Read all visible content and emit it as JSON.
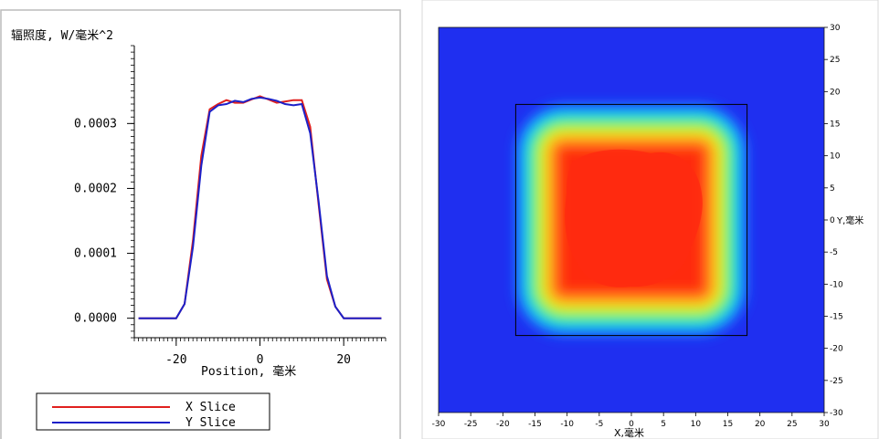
{
  "chart_data": [
    {
      "type": "line",
      "ylabel": "辐照度, W/毫米^2",
      "xlabel": "Position, 毫米",
      "xlim": [
        -30,
        30
      ],
      "ylim": [
        -3e-05,
        0.00042
      ],
      "x_tick_labels": [
        "-20",
        "0",
        "20"
      ],
      "x_ticks": [
        -20,
        0,
        20
      ],
      "y_tick_labels": [
        "0.0000",
        "0.0001",
        "0.0002",
        "0.0003"
      ],
      "y_ticks": [
        0,
        0.0001,
        0.0002,
        0.0003
      ],
      "legend": "bottom",
      "grid": false,
      "series": [
        {
          "name": "X Slice",
          "color": "#e0201e",
          "x": [
            -29,
            -20,
            -18,
            -16,
            -14,
            -12,
            -10,
            -8,
            -6,
            -4,
            -2,
            0,
            2,
            4,
            6,
            8,
            10,
            12,
            14,
            16,
            18,
            20,
            29
          ],
          "y": [
            0,
            0,
            2.2e-05,
            0.00012,
            0.00025,
            0.000322,
            0.00033,
            0.000336,
            0.000332,
            0.000332,
            0.000337,
            0.000342,
            0.000337,
            0.000332,
            0.000334,
            0.000336,
            0.000336,
            0.000295,
            0.000175,
            6e-05,
            1.8e-05,
            0,
            0
          ]
        },
        {
          "name": "Y Slice",
          "color": "#1c20c8",
          "x": [
            -29,
            -20,
            -18,
            -16,
            -14,
            -12,
            -10,
            -8,
            -6,
            -4,
            -2,
            0,
            2,
            4,
            6,
            8,
            10,
            12,
            14,
            16,
            18,
            20,
            29
          ],
          "y": [
            0,
            0,
            2.2e-05,
            0.00011,
            0.000235,
            0.000318,
            0.000328,
            0.00033,
            0.000335,
            0.000333,
            0.000338,
            0.00034,
            0.000338,
            0.000335,
            0.00033,
            0.000328,
            0.00033,
            0.000285,
            0.00018,
            6.5e-05,
            1.8e-05,
            0,
            0
          ]
        }
      ]
    },
    {
      "type": "heatmap",
      "xlabel": "X,毫米",
      "ylabel": "Y,毫米",
      "xlim": [
        -30,
        30
      ],
      "ylim": [
        -30,
        30
      ],
      "x_ticks": [
        "-30",
        "-25",
        "-20",
        "-15",
        "-10",
        "-5",
        "0",
        "5",
        "10",
        "15",
        "20",
        "25",
        "30"
      ],
      "y_ticks": [
        "30",
        "25",
        "20",
        "15",
        "10",
        "5",
        "0",
        "-5",
        "-10",
        "-15",
        "-20",
        "-25",
        "-30"
      ],
      "detector_box": [
        -18,
        18
      ],
      "colors": {
        "background": "#1f2ff0",
        "levels": [
          "#1f2ff0",
          "#1b5dff",
          "#1496ff",
          "#0fd2f2",
          "#12e6b3",
          "#3cf064",
          "#96f530",
          "#dcf51e",
          "#ffd21a",
          "#ffa01e",
          "#ff6e1e",
          "#ff4a16",
          "#ff2a10"
        ]
      },
      "plateau_size": 12.5,
      "edge_width": 6.2
    }
  ]
}
